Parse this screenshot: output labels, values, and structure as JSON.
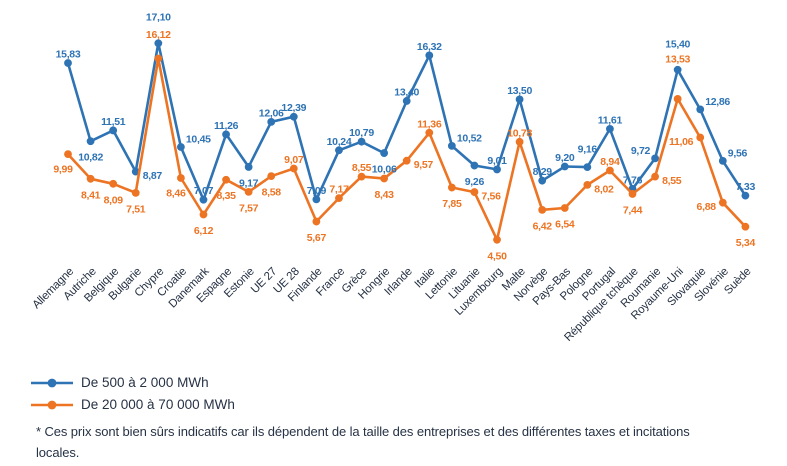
{
  "chart_data": {
    "type": "line",
    "title": "",
    "xlabel": "",
    "ylabel": "",
    "grid": "off",
    "legend_position": "bottom-left",
    "data_labels": true,
    "value_format": "comma-decimal-2",
    "ylim": [
      4,
      18
    ],
    "categories": [
      "Allemagne",
      "Autriche",
      "Belgique",
      "Bulgarie",
      "Chypre",
      "Croatie",
      "Danemark",
      "Espagne",
      "Estonie",
      "UE 27",
      "UE 28",
      "Finlande",
      "France",
      "Grèce",
      "Hongrie",
      "Irlande",
      "Italie",
      "Lettonie",
      "Lituanie",
      "Luxembourg",
      "Malte",
      "Norvège",
      "Pays-Bas",
      "Pologne",
      "Portugal",
      "République tchèque",
      "Roumanie",
      "Royaume-Uni",
      "Slovaquie",
      "Slovénie",
      "Suède"
    ],
    "series": [
      {
        "name": "De 500 à 2 000 MWh",
        "color": "#2E73B4",
        "values": [
          15.83,
          10.82,
          11.51,
          8.87,
          17.1,
          10.45,
          7.07,
          11.26,
          9.17,
          12.06,
          12.39,
          7.09,
          10.24,
          10.79,
          10.06,
          13.4,
          16.32,
          10.52,
          9.26,
          9.01,
          13.5,
          8.29,
          9.2,
          9.16,
          11.61,
          7.76,
          9.72,
          15.4,
          12.86,
          9.56,
          7.33
        ]
      },
      {
        "name": "De 20 000 à 70 000 MWh",
        "color": "#ED7423",
        "values": [
          9.99,
          8.41,
          8.09,
          7.51,
          16.12,
          8.46,
          6.12,
          8.35,
          7.57,
          8.58,
          9.07,
          5.67,
          7.17,
          8.55,
          8.43,
          9.57,
          11.36,
          7.85,
          7.56,
          4.5,
          10.78,
          6.42,
          6.54,
          8.02,
          8.94,
          7.44,
          8.55,
          13.53,
          11.06,
          6.88,
          5.34
        ]
      }
    ]
  },
  "footnote": "* Ces prix sont bien sûrs indicatifs car ils dépendent de la taille des entreprises et des différentes taxes et incitations locales.",
  "text_color": "#263245"
}
